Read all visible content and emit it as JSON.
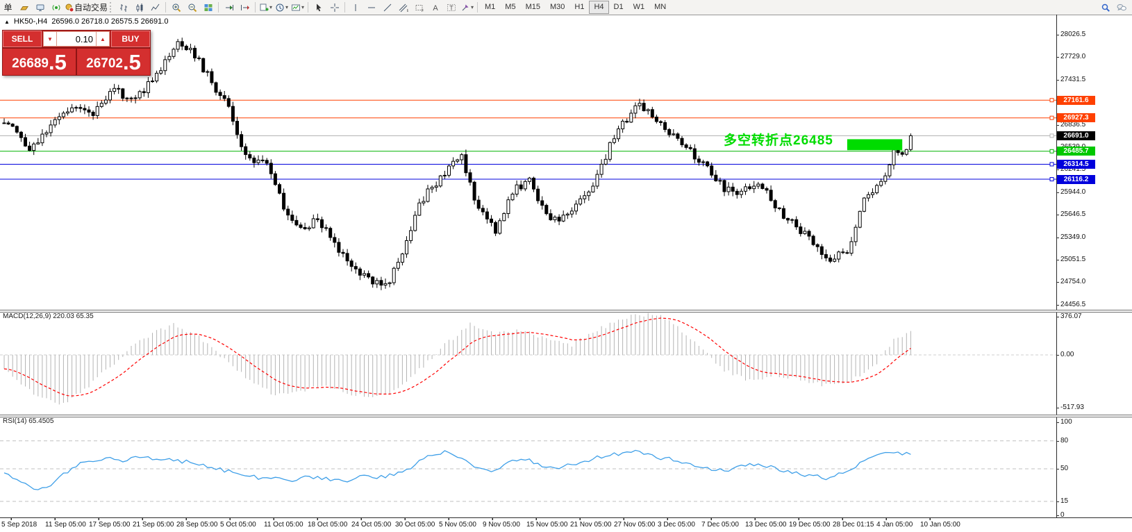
{
  "toolbar": {
    "new_order_label": "单",
    "autotrading_label": "自动交易",
    "timeframes": {
      "items": [
        "M1",
        "M5",
        "M15",
        "M30",
        "H1",
        "H4",
        "D1",
        "W1",
        "MN"
      ],
      "active": "H4"
    }
  },
  "title_bar": {
    "collapse_glyph": "▲",
    "symbol": "HK50-,H4",
    "ohlc_text": "26596.0 26718.0 26575.5 26691.0"
  },
  "trade_panel": {
    "sell_label": "SELL",
    "buy_label": "BUY",
    "volume": "0.10",
    "down_glyph": "▼",
    "up_glyph": "▲",
    "sell_price_main": "26689",
    "sell_price_frac": ".5",
    "buy_price_main": "26702",
    "buy_price_frac": ".5"
  },
  "annotation": {
    "text": "多空转折点26485",
    "color": "#00dc00"
  },
  "indicators": {
    "macd_label": "MACD(12,26,9) 220.03 65.35",
    "rsi_label": "RSI(14) 65.4505"
  },
  "colors": {
    "bull_fill": "#ffffff",
    "bear_fill": "#000000",
    "candle_outline": "#000000",
    "level_orange": "#ff4000",
    "level_green": "#00b400",
    "level_blue": "#0000dc",
    "current_price_line": "#b4b4b4",
    "current_badge_bg": "#000000",
    "macd_hist": "#b4b4b4",
    "macd_signal": "#ff0000",
    "rsi_line": "#3e9fe8",
    "annotation_green": "#00dc00"
  },
  "chart_data": [
    {
      "type": "candlestick",
      "symbol": "HK50-",
      "timeframe": "H4",
      "ohlc_readout": {
        "open": 26596.0,
        "high": 26718.0,
        "low": 26575.5,
        "close": 26691.0
      },
      "y_ticks": [
        28026.5,
        27729.0,
        27431.5,
        27134.0,
        26836.5,
        26539.0,
        26241.5,
        25944.0,
        25646.5,
        25349.0,
        25051.5,
        24754.0,
        24456.5
      ],
      "x_labels": [
        "5 Sep 2018",
        "11 Sep 05:00",
        "17 Sep 05:00",
        "21 Sep 05:00",
        "28 Sep 05:00",
        "5 Oct 05:00",
        "11 Oct 05:00",
        "18 Oct 05:00",
        "24 Oct 05:00",
        "30 Oct 05:00",
        "5 Nov 05:00",
        "9 Nov 05:00",
        "15 Nov 05:00",
        "21 Nov 05:00",
        "27 Nov 05:00",
        "3 Dec 05:00",
        "7 Dec 05:00",
        "13 Dec 05:00",
        "19 Dec 05:00",
        "28 Dec 01:15",
        "4 Jan 05:00",
        "10 Jan 05:00"
      ],
      "levels": [
        {
          "price": 27161.6,
          "color": "#ff4000",
          "badge": "#ff4000",
          "role": "resistance"
        },
        {
          "price": 26927.3,
          "color": "#ff4000",
          "badge": "#ff4000",
          "role": "resistance"
        },
        {
          "price": 26691.0,
          "color": "#b4b4b4",
          "badge": "#000000",
          "role": "current-price"
        },
        {
          "price": 26485.7,
          "color": "#00b400",
          "badge": "#00c800",
          "role": "pivot"
        },
        {
          "price": 26314.5,
          "color": "#0000dc",
          "badge": "#0000dc",
          "role": "support"
        },
        {
          "price": 26116.2,
          "color": "#0000dc",
          "badge": "#0000dc",
          "role": "support"
        }
      ],
      "highlight_box": {
        "candle_start": 199,
        "candle_end": 212,
        "price_top": 26645,
        "price_bottom": 26500,
        "color": "#00dc00"
      },
      "candle_count": 215,
      "price_path_anchors": [
        [
          0,
          26900
        ],
        [
          6,
          26550
        ],
        [
          12,
          26850
        ],
        [
          16,
          27100
        ],
        [
          20,
          26950
        ],
        [
          26,
          27300
        ],
        [
          31,
          27150
        ],
        [
          37,
          27600
        ],
        [
          41,
          27900
        ],
        [
          44,
          27850
        ],
        [
          48,
          27500
        ],
        [
          53,
          27050
        ],
        [
          57,
          26400
        ],
        [
          62,
          26300
        ],
        [
          66,
          25750
        ],
        [
          70,
          25450
        ],
        [
          74,
          25600
        ],
        [
          78,
          25250
        ],
        [
          82,
          25000
        ],
        [
          86,
          24800
        ],
        [
          90,
          24700
        ],
        [
          94,
          25100
        ],
        [
          98,
          25800
        ],
        [
          103,
          26150
        ],
        [
          108,
          26400
        ],
        [
          112,
          25700
        ],
        [
          116,
          25450
        ],
        [
          120,
          25950
        ],
        [
          124,
          26100
        ],
        [
          129,
          25550
        ],
        [
          134,
          25700
        ],
        [
          139,
          26050
        ],
        [
          145,
          26800
        ],
        [
          150,
          27100
        ],
        [
          155,
          26850
        ],
        [
          160,
          26600
        ],
        [
          165,
          26300
        ],
        [
          170,
          26000
        ],
        [
          174,
          25950
        ],
        [
          178,
          26100
        ],
        [
          182,
          25750
        ],
        [
          188,
          25450
        ],
        [
          194,
          25050
        ],
        [
          199,
          25150
        ],
        [
          203,
          25900
        ],
        [
          207,
          26050
        ],
        [
          210,
          26500
        ],
        [
          212,
          26400
        ],
        [
          214,
          26691
        ]
      ]
    },
    {
      "type": "bar",
      "name": "MACD(12,26,9)",
      "readout_main": 220.03,
      "readout_signal": 65.35,
      "y_ticks": [
        376.07,
        0.0,
        -517.93
      ],
      "hist_anchors": [
        [
          0,
          -150
        ],
        [
          8,
          -420
        ],
        [
          14,
          -480
        ],
        [
          20,
          -300
        ],
        [
          26,
          -80
        ],
        [
          32,
          150
        ],
        [
          40,
          300
        ],
        [
          46,
          180
        ],
        [
          52,
          -50
        ],
        [
          58,
          -250
        ],
        [
          64,
          -400
        ],
        [
          70,
          -350
        ],
        [
          76,
          -300
        ],
        [
          82,
          -380
        ],
        [
          88,
          -420
        ],
        [
          92,
          -350
        ],
        [
          98,
          -150
        ],
        [
          104,
          100
        ],
        [
          110,
          300
        ],
        [
          116,
          200
        ],
        [
          122,
          250
        ],
        [
          128,
          150
        ],
        [
          134,
          100
        ],
        [
          140,
          250
        ],
        [
          148,
          380
        ],
        [
          154,
          400
        ],
        [
          158,
          300
        ],
        [
          164,
          100
        ],
        [
          170,
          -150
        ],
        [
          176,
          -250
        ],
        [
          182,
          -200
        ],
        [
          188,
          -250
        ],
        [
          194,
          -300
        ],
        [
          200,
          -250
        ],
        [
          206,
          -80
        ],
        [
          210,
          150
        ],
        [
          214,
          220
        ]
      ]
    },
    {
      "type": "line",
      "name": "RSI(14)",
      "readout": 65.4505,
      "range": [
        0,
        100
      ],
      "level_lines": [
        80,
        50,
        15
      ],
      "y_tick_labels": [
        100,
        80,
        50,
        15,
        0
      ],
      "anchors": [
        [
          0,
          45
        ],
        [
          6,
          30
        ],
        [
          10,
          28
        ],
        [
          14,
          45
        ],
        [
          18,
          55
        ],
        [
          24,
          62
        ],
        [
          28,
          58
        ],
        [
          32,
          63
        ],
        [
          38,
          60
        ],
        [
          44,
          57
        ],
        [
          50,
          50
        ],
        [
          56,
          45
        ],
        [
          60,
          40
        ],
        [
          64,
          42
        ],
        [
          68,
          37
        ],
        [
          72,
          42
        ],
        [
          76,
          39
        ],
        [
          80,
          36
        ],
        [
          84,
          42
        ],
        [
          88,
          40
        ],
        [
          92,
          44
        ],
        [
          96,
          52
        ],
        [
          100,
          63
        ],
        [
          104,
          68
        ],
        [
          108,
          62
        ],
        [
          112,
          50
        ],
        [
          116,
          48
        ],
        [
          120,
          58
        ],
        [
          124,
          60
        ],
        [
          128,
          50
        ],
        [
          132,
          52
        ],
        [
          136,
          57
        ],
        [
          140,
          62
        ],
        [
          146,
          67
        ],
        [
          150,
          69
        ],
        [
          154,
          62
        ],
        [
          158,
          60
        ],
        [
          162,
          55
        ],
        [
          166,
          50
        ],
        [
          170,
          48
        ],
        [
          174,
          52
        ],
        [
          178,
          56
        ],
        [
          182,
          50
        ],
        [
          186,
          46
        ],
        [
          190,
          43
        ],
        [
          194,
          40
        ],
        [
          198,
          45
        ],
        [
          202,
          55
        ],
        [
          206,
          65
        ],
        [
          210,
          68
        ],
        [
          212,
          66
        ],
        [
          214,
          65.45
        ]
      ]
    }
  ]
}
